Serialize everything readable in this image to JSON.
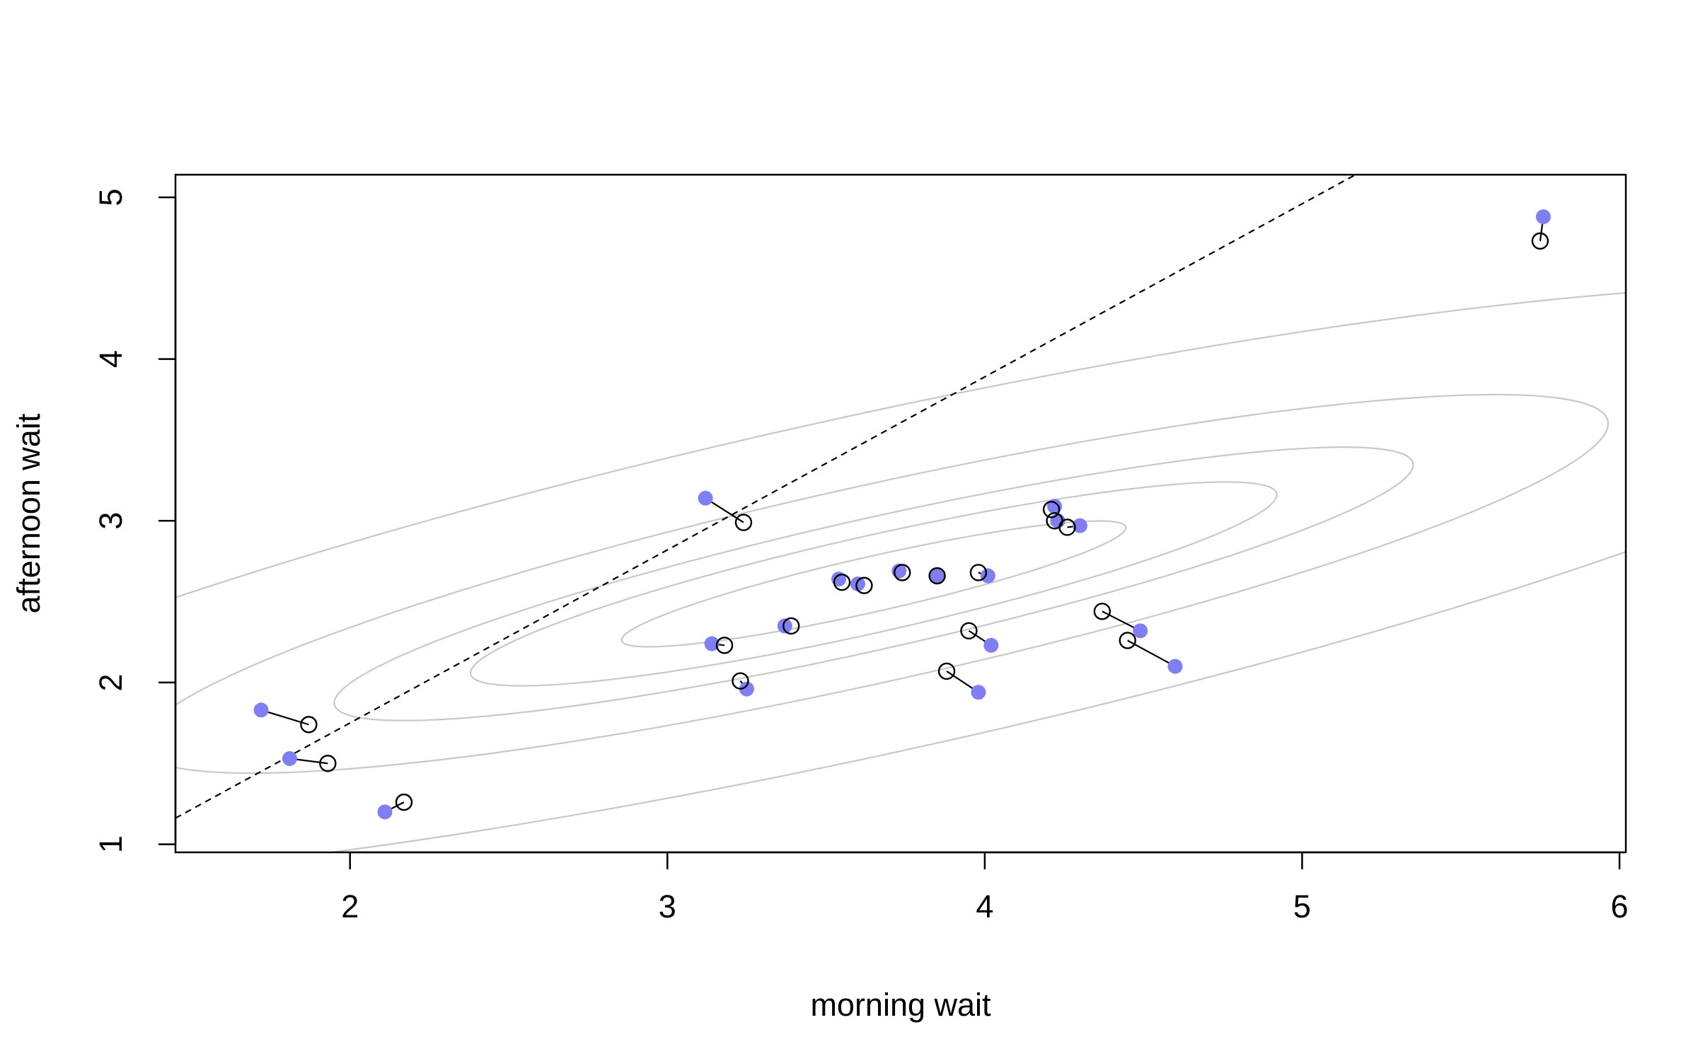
{
  "chart_data": {
    "type": "scatter",
    "title": "",
    "xlabel": "morning wait",
    "ylabel": "afternoon wait",
    "xlim": [
      1.45,
      6.02
    ],
    "ylim": [
      0.95,
      5.14
    ],
    "x_ticks": [
      2,
      3,
      4,
      5,
      6
    ],
    "x_tick_labels": [
      "2",
      "3",
      "4",
      "5",
      "6"
    ],
    "y_ticks": [
      1,
      2,
      3,
      4,
      5
    ],
    "y_tick_labels": [
      "1",
      "2",
      "3",
      "4",
      "5"
    ],
    "grid": false,
    "legend": "none",
    "colors": {
      "raw_points": "#7f7ff2",
      "pooled_points": "#000000",
      "contours": "#c8c8c8",
      "reference_line": "#000000",
      "links": "#000000"
    },
    "reference_line": {
      "style": "dashed",
      "intercept": -0.39,
      "slope": 1.07
    },
    "contours": {
      "center": [
        3.65,
        2.61
      ],
      "angle_deg": 24.5,
      "semi_axes": [
        [
          0.87,
          0.16
        ],
        [
          1.39,
          0.28
        ],
        [
          1.86,
          0.38
        ],
        [
          2.53,
          0.57
        ],
        [
          3.9,
          0.98
        ]
      ]
    },
    "series": [
      {
        "marker": "filled",
        "x": [
          1.72,
          1.81,
          2.11,
          3.12,
          3.14,
          3.25,
          3.37,
          3.54,
          3.6,
          3.73,
          3.85,
          3.98,
          4.01,
          4.02,
          4.22,
          4.23,
          4.3,
          4.49,
          4.6,
          5.76
        ],
        "y": [
          1.83,
          1.53,
          1.2,
          3.14,
          2.24,
          1.96,
          2.35,
          2.64,
          2.61,
          2.69,
          2.66,
          1.94,
          2.66,
          2.23,
          3.09,
          3.0,
          2.97,
          2.32,
          2.1,
          4.88
        ]
      },
      {
        "marker": "open",
        "x": [
          1.87,
          1.93,
          2.17,
          3.24,
          3.18,
          3.23,
          3.39,
          3.55,
          3.62,
          3.74,
          3.85,
          3.88,
          3.98,
          3.95,
          4.21,
          4.22,
          4.26,
          4.37,
          4.45,
          5.75
        ],
        "y": [
          1.74,
          1.5,
          1.26,
          2.99,
          2.23,
          2.01,
          2.35,
          2.62,
          2.6,
          2.68,
          2.66,
          2.07,
          2.68,
          2.32,
          3.07,
          3.0,
          2.96,
          2.44,
          2.26,
          4.73
        ]
      }
    ]
  }
}
